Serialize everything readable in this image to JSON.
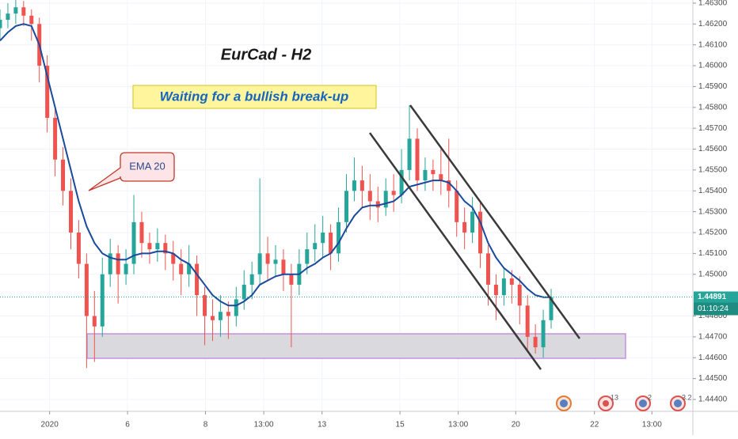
{
  "chart_data": {
    "type": "candlestick",
    "title": "EurCad - H2",
    "annotation": "Waiting for a bullish break-up",
    "x": [
      0,
      1,
      2,
      3,
      4,
      5,
      6,
      7,
      8,
      9,
      10,
      11,
      12,
      13,
      14,
      15,
      16,
      17,
      18,
      19,
      20,
      21,
      22,
      23,
      24,
      25,
      26,
      27,
      28,
      29,
      30,
      31,
      32,
      33,
      34,
      35,
      36,
      37,
      38,
      39,
      40,
      41,
      42,
      43,
      44,
      45,
      46,
      47,
      48,
      49,
      50,
      51,
      52,
      53,
      54,
      55,
      56,
      57,
      58,
      59,
      60,
      61,
      62,
      63,
      64,
      65,
      66,
      67,
      68,
      69,
      70
    ],
    "open": [
      1.4618,
      1.4622,
      1.4625,
      1.4628,
      1.4624,
      1.462,
      1.46,
      1.4575,
      1.4555,
      1.454,
      1.452,
      1.4505,
      1.448,
      1.4475,
      1.45,
      1.451,
      1.45,
      1.4505,
      1.4525,
      1.4515,
      1.4512,
      1.4515,
      1.451,
      1.4505,
      1.45,
      1.4505,
      1.449,
      1.448,
      1.4478,
      1.4482,
      1.448,
      1.4488,
      1.4495,
      1.45,
      1.451,
      1.4505,
      1.4507,
      1.45,
      1.4495,
      1.4505,
      1.4512,
      1.4515,
      1.452,
      1.451,
      1.4525,
      1.454,
      1.4545,
      1.454,
      1.4535,
      1.4532,
      1.454,
      1.4538,
      1.455,
      1.4565,
      1.4545,
      1.455,
      1.4548,
      1.4545,
      1.454,
      1.4525,
      1.452,
      1.453,
      1.451,
      1.4495,
      1.449,
      1.4498,
      1.4495,
      1.4485,
      1.447,
      1.4465,
      1.4478
    ],
    "high": [
      1.4627,
      1.463,
      1.4632,
      1.4631,
      1.4627,
      1.4623,
      1.4605,
      1.458,
      1.4561,
      1.4546,
      1.4526,
      1.451,
      1.4492,
      1.4508,
      1.4517,
      1.4514,
      1.4512,
      1.4538,
      1.453,
      1.452,
      1.4522,
      1.4519,
      1.4516,
      1.4512,
      1.4514,
      1.4509,
      1.4494,
      1.4488,
      1.449,
      1.4487,
      1.4494,
      1.4502,
      1.4506,
      1.4546,
      1.4518,
      1.4514,
      1.4512,
      1.4505,
      1.4512,
      1.452,
      1.4524,
      1.4528,
      1.4524,
      1.4532,
      1.4548,
      1.4556,
      1.4552,
      1.4548,
      1.4542,
      1.4546,
      1.4548,
      1.456,
      1.4581,
      1.457,
      1.4556,
      1.4555,
      1.456,
      1.4565,
      1.4545,
      1.4532,
      1.4537,
      1.4534,
      1.4514,
      1.45,
      1.4503,
      1.4502,
      1.4499,
      1.449,
      1.4476,
      1.4483,
      1.4493
    ],
    "low": [
      1.4612,
      1.4618,
      1.462,
      1.4619,
      1.4612,
      1.4592,
      1.4568,
      1.4547,
      1.4533,
      1.4512,
      1.4498,
      1.4455,
      1.4458,
      1.447,
      1.4494,
      1.4486,
      1.4495,
      1.45,
      1.4508,
      1.4505,
      1.4506,
      1.4502,
      1.4497,
      1.449,
      1.4494,
      1.448,
      1.4466,
      1.4468,
      1.447,
      1.4469,
      1.4475,
      1.4483,
      1.4488,
      1.4495,
      1.4497,
      1.4499,
      1.4492,
      1.4465,
      1.449,
      1.45,
      1.4506,
      1.4508,
      1.4502,
      1.4506,
      1.452,
      1.4535,
      1.4532,
      1.4526,
      1.4525,
      1.4528,
      1.453,
      1.4534,
      1.4545,
      1.454,
      1.454,
      1.454,
      1.4538,
      1.4532,
      1.4518,
      1.4512,
      1.4515,
      1.4503,
      1.4485,
      1.4478,
      1.4485,
      1.4486,
      1.4476,
      1.4463,
      1.4462,
      1.446,
      1.4474
    ],
    "close": [
      1.4622,
      1.4625,
      1.4628,
      1.4624,
      1.462,
      1.46,
      1.4575,
      1.4555,
      1.454,
      1.452,
      1.4505,
      1.448,
      1.4475,
      1.45,
      1.451,
      1.45,
      1.4505,
      1.4525,
      1.4515,
      1.4512,
      1.4515,
      1.451,
      1.4505,
      1.45,
      1.4505,
      1.449,
      1.448,
      1.4478,
      1.4482,
      1.448,
      1.4488,
      1.4495,
      1.45,
      1.451,
      1.4505,
      1.4507,
      1.45,
      1.4495,
      1.4505,
      1.4512,
      1.4515,
      1.452,
      1.451,
      1.4525,
      1.454,
      1.4545,
      1.454,
      1.4535,
      1.4532,
      1.454,
      1.4538,
      1.455,
      1.4565,
      1.4545,
      1.455,
      1.4548,
      1.4545,
      1.454,
      1.4525,
      1.452,
      1.453,
      1.451,
      1.4495,
      1.449,
      1.4498,
      1.4495,
      1.4485,
      1.447,
      1.4465,
      1.4478,
      1.4489
    ],
    "up_color": "#26a69a",
    "down_color": "#ef5350",
    "ema": {
      "name": "EMA 20",
      "color": "#1a4a9c",
      "values": [
        1.4612,
        1.4616,
        1.4619,
        1.462,
        1.4619,
        1.461,
        1.4595,
        1.458,
        1.4565,
        1.455,
        1.4535,
        1.4523,
        1.4515,
        1.451,
        1.4508,
        1.4507,
        1.4507,
        1.4509,
        1.451,
        1.451,
        1.4511,
        1.4511,
        1.451,
        1.4507,
        1.4505,
        1.45,
        1.4495,
        1.449,
        1.4487,
        1.4485,
        1.4485,
        1.4487,
        1.449,
        1.4495,
        1.4497,
        1.4499,
        1.45,
        1.45,
        1.45,
        1.4503,
        1.4505,
        1.4508,
        1.451,
        1.4515,
        1.4522,
        1.4528,
        1.4532,
        1.4533,
        1.4533,
        1.4534,
        1.4535,
        1.4538,
        1.4542,
        1.4543,
        1.4544,
        1.4545,
        1.4545,
        1.4544,
        1.454,
        1.4535,
        1.4532,
        1.4525,
        1.4515,
        1.4508,
        1.4503,
        1.45,
        1.4497,
        1.4493,
        1.449,
        1.4489,
        1.4489
      ]
    },
    "last_price": {
      "value": 1.44891,
      "label": "1.44891"
    },
    "countdown": "01:10:24",
    "xlim": [
      0,
      88
    ],
    "ylim": [
      1.44343,
      1.46315
    ],
    "xticks": [
      {
        "value": 6.3,
        "label": "2020"
      },
      {
        "value": 16.2,
        "label": "6"
      },
      {
        "value": 26.1,
        "label": "8"
      },
      {
        "value": 33.5,
        "label": "13:00"
      },
      {
        "value": 40.9,
        "label": "13"
      },
      {
        "value": 50.8,
        "label": "15"
      },
      {
        "value": 58.2,
        "label": "13:00"
      },
      {
        "value": 65.5,
        "label": "20"
      },
      {
        "value": 75.5,
        "label": "22"
      },
      {
        "value": 82.8,
        "label": "13:00"
      }
    ],
    "yticks": [
      {
        "value": 1.463,
        "label": "1.46300"
      },
      {
        "value": 1.462,
        "label": "1.46200"
      },
      {
        "value": 1.461,
        "label": "1.46100"
      },
      {
        "value": 1.46,
        "label": "1.46000"
      },
      {
        "value": 1.459,
        "label": "1.45900"
      },
      {
        "value": 1.458,
        "label": "1.45800"
      },
      {
        "value": 1.457,
        "label": "1.45700"
      },
      {
        "value": 1.456,
        "label": "1.45600"
      },
      {
        "value": 1.455,
        "label": "1.45500"
      },
      {
        "value": 1.454,
        "label": "1.45400"
      },
      {
        "value": 1.453,
        "label": "1.45300"
      },
      {
        "value": 1.452,
        "label": "1.45200"
      },
      {
        "value": 1.451,
        "label": "1.45100"
      },
      {
        "value": 1.45,
        "label": "1.45000"
      },
      {
        "value": 1.448,
        "label": "1.44800"
      },
      {
        "value": 1.447,
        "label": "1.44700"
      },
      {
        "value": 1.446,
        "label": "1.44600"
      },
      {
        "value": 1.445,
        "label": "1.44500"
      },
      {
        "value": 1.444,
        "label": "1.44400"
      }
    ],
    "grid": true,
    "events": [
      "13",
      "2",
      "3.2"
    ]
  }
}
